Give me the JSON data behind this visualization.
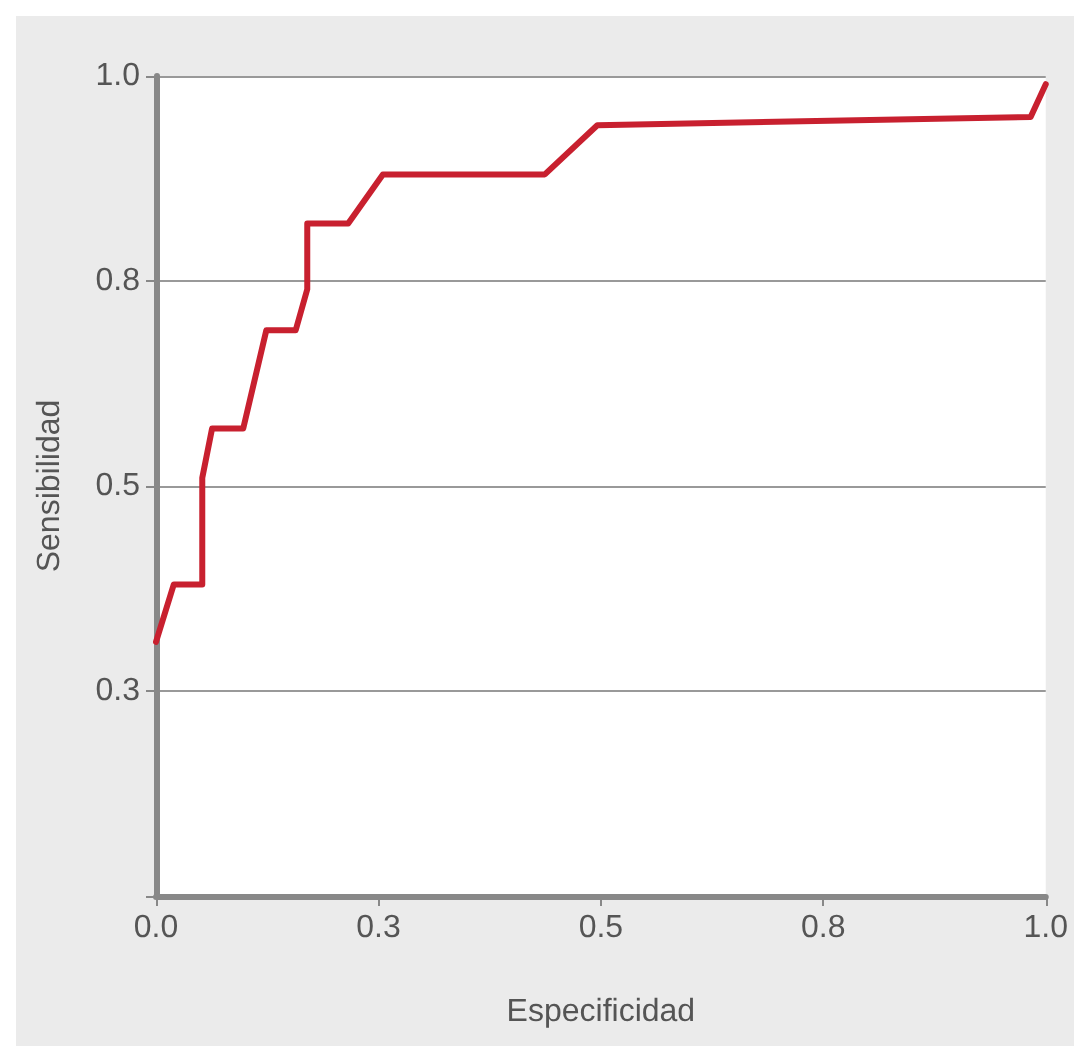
{
  "chart_data": {
    "type": "line",
    "xlabel": "Especificidad",
    "ylabel": "Sensibilidad",
    "xlim": [
      0,
      1
    ],
    "ylim": [
      0,
      1
    ],
    "xticks": [
      {
        "value": 0,
        "label": "0.0"
      },
      {
        "value": 0.25,
        "label": "0.3"
      },
      {
        "value": 0.5,
        "label": "0.5"
      },
      {
        "value": 0.75,
        "label": "0.8"
      },
      {
        "value": 1,
        "label": "1.0"
      }
    ],
    "yticks": [
      {
        "value": 0,
        "label": null
      },
      {
        "value": 0.25,
        "label": "0.3"
      },
      {
        "value": 0.5,
        "label": "0.5"
      },
      {
        "value": 0.75,
        "label": "0.8"
      },
      {
        "value": 1,
        "label": "1.0"
      }
    ],
    "grid": "y",
    "marker": "none",
    "line_style": "solid",
    "series": [
      {
        "color": "#c8202f",
        "x": [
          0,
          0.02,
          0.052,
          0.052,
          0.063,
          0.098,
          0.124,
          0.157,
          0.17,
          0.17,
          0.216,
          0.255,
          0.437,
          0.496,
          0.983,
          1.0
        ],
        "values": [
          0.31,
          0.38,
          0.38,
          0.51,
          0.57,
          0.57,
          0.69,
          0.69,
          0.74,
          0.82,
          0.82,
          0.88,
          0.88,
          0.94,
          0.95,
          0.99
        ]
      }
    ]
  }
}
